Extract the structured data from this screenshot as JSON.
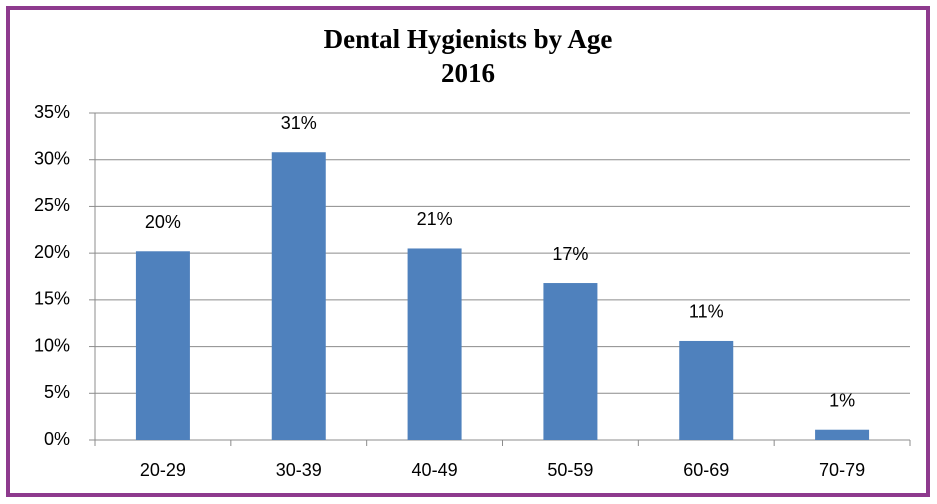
{
  "chart_data": {
    "type": "bar",
    "title": "Dental Hygienists by Age",
    "subtitle": "2016",
    "categories": [
      "20-29",
      "30-39",
      "40-49",
      "50-59",
      "60-69",
      "70-79"
    ],
    "values": [
      20.2,
      30.8,
      20.5,
      16.8,
      10.6,
      1.1
    ],
    "value_labels": [
      "20%",
      "31%",
      "21%",
      "17%",
      "11%",
      "1%"
    ],
    "color": "#4f81bd",
    "ylim": [
      0,
      35
    ],
    "yticks": [
      {
        "value": 0,
        "label": "0%"
      },
      {
        "value": 5,
        "label": "5%"
      },
      {
        "value": 10,
        "label": "10%"
      },
      {
        "value": 15,
        "label": "15%"
      },
      {
        "value": 20,
        "label": "20%"
      },
      {
        "value": 25,
        "label": "25%"
      },
      {
        "value": 30,
        "label": "30%"
      },
      {
        "value": 35,
        "label": "35%"
      }
    ],
    "grid": true
  }
}
